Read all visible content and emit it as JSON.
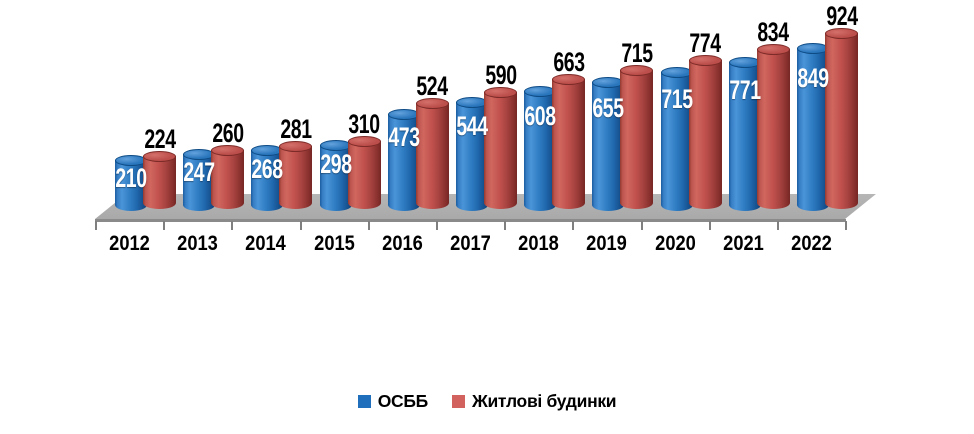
{
  "chart_data": {
    "type": "bar",
    "subtype": "3d-cylinder",
    "title": "",
    "xlabel": "",
    "ylabel": "",
    "categories": [
      "2012",
      "2013",
      "2014",
      "2015",
      "2016",
      "2017",
      "2018",
      "2019",
      "2020",
      "2021",
      "2022"
    ],
    "series": [
      {
        "name": "ОСББ",
        "color": "#2272BD",
        "label_color": "#FFFFFF",
        "values": [
          210,
          247,
          268,
          298,
          473,
          544,
          608,
          655,
          715,
          771,
          849
        ]
      },
      {
        "name": "Житлові будинки",
        "color": "#C0504D",
        "label_color": "#000000",
        "values": [
          224,
          260,
          281,
          310,
          524,
          590,
          663,
          715,
          774,
          834,
          924
        ]
      }
    ],
    "value_labels": "shown",
    "legend_position": "bottom",
    "axis": {
      "x_ticks": "category-boundaries",
      "y_axis": "hidden"
    },
    "background": "#FFFFFF",
    "floor_color": "#ACACAC"
  },
  "legend": {
    "items": [
      {
        "label": "ОСББ",
        "color": "#1F6FBC"
      },
      {
        "label": "Житлові будинки",
        "color": "#D2625E"
      }
    ]
  }
}
